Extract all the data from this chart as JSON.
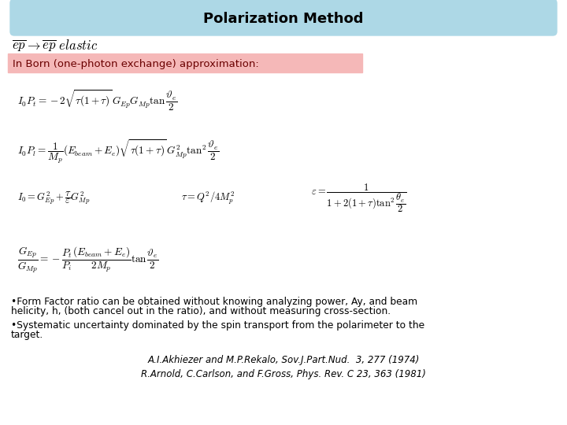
{
  "title": "Polarization Method",
  "title_bg": "#add8e6",
  "born_label": "In Born (one-photon exchange) approximation:",
  "born_bg": "#f5b8b8",
  "eq1": "$I_0 P_t = -2\\sqrt{\\tau(1+\\tau)}\\,G_{Ep}G_{Mp}\\tan\\dfrac{\\vartheta_e}{2}$",
  "eq2": "$I_0 P_l = \\dfrac{1}{M_p}(E_{beam} + E_e)\\sqrt{\\tau(1+\\tau)}\\,G^2_{Mp}\\tan^2\\dfrac{\\vartheta_e}{2}$",
  "eq3a": "$I_0 = G^2_{Ep} + \\dfrac{\\tau}{\\varepsilon}G^2_{Mp}$",
  "eq3b": "$\\tau = Q^2/4M^2_p$",
  "eq3c": "$\\varepsilon = \\dfrac{1}{1+2(1+\\tau)\\tan^2\\dfrac{\\theta_e}{2}}$",
  "eq4": "$\\dfrac{G_{Ep}}{G_{Mp}} = -\\dfrac{P_t}{P_i}\\dfrac{(E_{beam}+E_e)}{2M_p}\\tan\\dfrac{\\vartheta_e}{2}$",
  "bullet1a": "•Form Factor ratio can be obtained without knowing analyzing power, Ay, and beam",
  "bullet1b": "helicity, h, (both cancel out in the ratio), and without measuring cross-section.",
  "bullet2a": "•Systematic uncertainty dominated by the spin transport from the polarimeter to the",
  "bullet2b": "target.",
  "ref1": "A.I.Akhiezer and M.P.Rekalo, Sov.J.Part.Nud.  3, 277 (1974)",
  "ref2": "R.Arnold, C.Carlson, and F.Gross, Phys. Rev. C 23, 363 (1981)",
  "bg_color": "#ffffff"
}
